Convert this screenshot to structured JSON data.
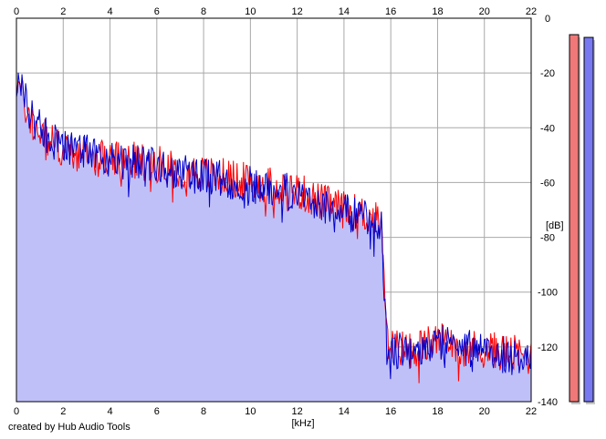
{
  "credit": "created by Hub Audio Tools",
  "colors": {
    "background": "#ffffff",
    "grid": "#a8a8a8",
    "fill": "#c0c0f8",
    "left_channel": "#ff0000",
    "right_channel": "#0000cc",
    "meter_left": "#f07878",
    "meter_right": "#7878f0"
  },
  "chart_data": {
    "type": "area",
    "xlabel": "[kHz]",
    "ylabel": "[dB]",
    "xlim": [
      0,
      22
    ],
    "ylim": [
      -140,
      0
    ],
    "xticks": [
      0,
      2,
      4,
      6,
      8,
      10,
      12,
      14,
      16,
      18,
      20,
      22
    ],
    "yticks": [
      0,
      -20,
      -40,
      -60,
      -80,
      -100,
      -120,
      -140
    ],
    "grid": true,
    "series": [
      {
        "color": "#ff0000",
        "x": [
          0,
          0.3,
          0.6,
          1,
          1.5,
          2,
          3,
          4,
          5,
          6,
          7,
          8,
          9,
          10,
          11,
          12,
          13,
          14,
          15,
          15.6,
          15.8,
          16,
          17,
          18,
          18.5,
          19,
          20,
          21,
          22
        ],
        "values": [
          -21,
          -30,
          -38,
          -42,
          -45,
          -48,
          -50,
          -52,
          -52,
          -53,
          -55,
          -57,
          -58,
          -60,
          -61,
          -63,
          -67,
          -70,
          -72,
          -75,
          -115,
          -120,
          -121,
          -118,
          -117,
          -120,
          -121,
          -122,
          -124
        ]
      },
      {
        "color": "#0000cc",
        "x": [
          0,
          0.3,
          0.6,
          1,
          1.5,
          2,
          3,
          4,
          5,
          6,
          7,
          8,
          9,
          10,
          11,
          12,
          13,
          14,
          15,
          15.6,
          15.8,
          16,
          17,
          18,
          18.5,
          19,
          20,
          21,
          22
        ],
        "values": [
          -23,
          -28,
          -35,
          -40,
          -44,
          -47,
          -49,
          -51,
          -53,
          -54,
          -56,
          -58,
          -59,
          -61,
          -62,
          -64,
          -68,
          -71,
          -73,
          -76,
          -115,
          -121,
          -122,
          -119,
          -116,
          -120,
          -122,
          -123,
          -125
        ]
      }
    ],
    "meters": [
      {
        "channel": "left",
        "level_db": -6,
        "color": "#f07878"
      },
      {
        "channel": "right",
        "level_db": -7,
        "color": "#7878f0"
      }
    ]
  }
}
